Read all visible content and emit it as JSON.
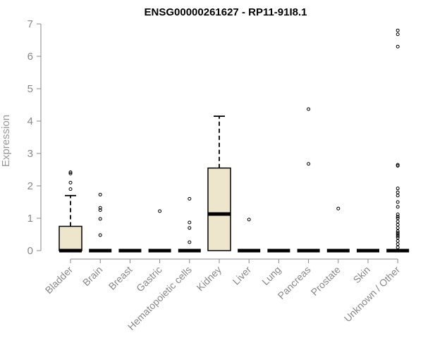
{
  "chart_data": {
    "type": "box",
    "title": "ENSG00000261627 - RP11-91I8.1",
    "ylabel": "Expression",
    "xlabel": "",
    "ylim": [
      0,
      7
    ],
    "yticks": [
      0,
      1,
      2,
      3,
      4,
      5,
      6,
      7
    ],
    "grid": false,
    "legend": "none",
    "box_fill": "#ede6cd",
    "box_stroke": "#000000",
    "categories": [
      "Bladder",
      "Brain",
      "Breast",
      "Gastric",
      "Hematopoietic cells",
      "Kidney",
      "Liver",
      "Lung",
      "Pancreas",
      "Prostate",
      "Skin",
      "Unknown / Other"
    ],
    "boxes": [
      {
        "category": "Bladder",
        "q1": 0,
        "median": 0,
        "q3": 0.75,
        "whisker_low": 0,
        "whisker_high": 1.7,
        "outliers": [
          1.9,
          2.1,
          2.38,
          2.42
        ]
      },
      {
        "category": "Brain",
        "q1": 0,
        "median": 0,
        "q3": 0,
        "whisker_low": 0,
        "whisker_high": 0,
        "outliers": [
          0.48,
          0.98,
          1.25,
          1.32,
          1.73
        ]
      },
      {
        "category": "Breast",
        "q1": 0,
        "median": 0,
        "q3": 0,
        "whisker_low": 0,
        "whisker_high": 0,
        "outliers": []
      },
      {
        "category": "Gastric",
        "q1": 0,
        "median": 0,
        "q3": 0,
        "whisker_low": 0,
        "whisker_high": 0,
        "outliers": [
          1.22
        ]
      },
      {
        "category": "Hematopoietic cells",
        "q1": 0,
        "median": 0,
        "q3": 0,
        "whisker_low": 0,
        "whisker_high": 0,
        "outliers": [
          0.26,
          0.7,
          0.87,
          1.6
        ]
      },
      {
        "category": "Kidney",
        "q1": 0,
        "median": 1.13,
        "q3": 2.55,
        "whisker_low": 0,
        "whisker_high": 4.15,
        "outliers": []
      },
      {
        "category": "Liver",
        "q1": 0,
        "median": 0,
        "q3": 0,
        "whisker_low": 0,
        "whisker_high": 0,
        "outliers": [
          0.96
        ]
      },
      {
        "category": "Lung",
        "q1": 0,
        "median": 0,
        "q3": 0,
        "whisker_low": 0,
        "whisker_high": 0,
        "outliers": []
      },
      {
        "category": "Pancreas",
        "q1": 0,
        "median": 0,
        "q3": 0,
        "whisker_low": 0,
        "whisker_high": 0,
        "outliers": [
          2.68,
          4.37
        ]
      },
      {
        "category": "Prostate",
        "q1": 0,
        "median": 0,
        "q3": 0,
        "whisker_low": 0,
        "whisker_high": 0,
        "outliers": [
          1.3
        ]
      },
      {
        "category": "Skin",
        "q1": 0,
        "median": 0,
        "q3": 0,
        "whisker_low": 0,
        "whisker_high": 0,
        "outliers": []
      },
      {
        "category": "Unknown / Other",
        "q1": 0,
        "median": 0,
        "q3": 0,
        "whisker_low": 0,
        "whisker_high": 0,
        "outliers": [
          0.1,
          0.2,
          0.3,
          0.4,
          0.45,
          0.5,
          0.55,
          0.6,
          0.7,
          0.8,
          0.9,
          1.0,
          1.05,
          1.12,
          1.35,
          1.5,
          1.7,
          1.8,
          1.92,
          2.62,
          2.65,
          6.3,
          6.68,
          6.8
        ]
      }
    ]
  }
}
